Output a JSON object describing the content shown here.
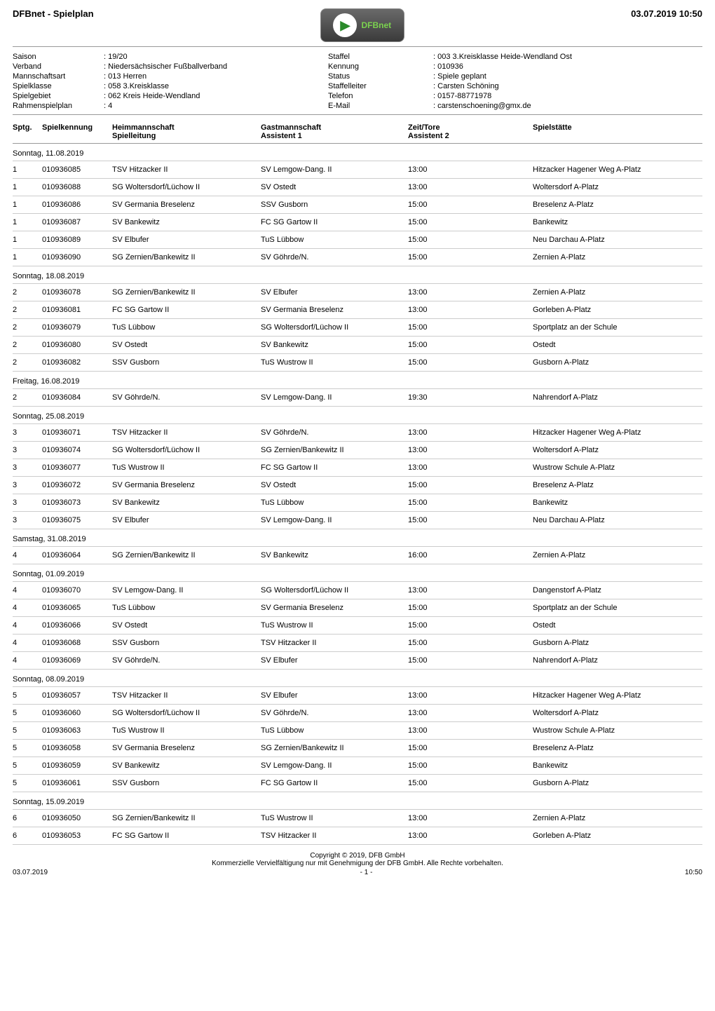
{
  "header": {
    "title": "DFBnet - Spielplan",
    "date": "03.07.2019 10:50",
    "logo_text": "DFBnet"
  },
  "meta": {
    "left": [
      {
        "label": "Saison",
        "value": "19/20"
      },
      {
        "label": "Verband",
        "value": "Niedersächsischer Fußballverband"
      },
      {
        "label": "Mannschaftsart",
        "value": "013 Herren"
      },
      {
        "label": "Spielklasse",
        "value": "058 3.Kreisklasse"
      },
      {
        "label": "Spielgebiet",
        "value": "062 Kreis Heide-Wendland"
      },
      {
        "label": "Rahmenspielplan",
        "value": "4"
      }
    ],
    "right": [
      {
        "label": "Staffel",
        "value": "003 3.Kreisklasse Heide-Wendland Ost"
      },
      {
        "label": "Kennung",
        "value": "010936"
      },
      {
        "label": "Status",
        "value": "Spiele geplant"
      },
      {
        "label": "Staffelleiter",
        "value": "Carsten Schöning"
      },
      {
        "label": "Telefon",
        "value": "0157-88771978"
      },
      {
        "label": "E-Mail",
        "value": "carstenschoening@gmx.de"
      }
    ]
  },
  "columns": {
    "sptg": "Sptg.",
    "kennung": "Spielkennung",
    "heim": "Heimmannschaft",
    "heim_sub": "Spielleitung",
    "gast": "Gastmannschaft",
    "gast_sub": "Assistent 1",
    "zeit": "Zeit/Tore",
    "zeit_sub": "Assistent 2",
    "stadion": "Spielstätte"
  },
  "groups": [
    {
      "date": "Sonntag, 11.08.2019",
      "rows": [
        {
          "sptg": "1",
          "kennung": "010936085",
          "heim": "TSV Hitzacker II",
          "gast": "SV Lemgow-Dang. II",
          "zeit": "13:00",
          "stadion": "Hitzacker Hagener Weg A-Platz"
        },
        {
          "sptg": "1",
          "kennung": "010936088",
          "heim": "SG Woltersdorf/Lüchow II",
          "gast": "SV Ostedt",
          "zeit": "13:00",
          "stadion": "Woltersdorf A-Platz"
        },
        {
          "sptg": "1",
          "kennung": "010936086",
          "heim": "SV Germania Breselenz",
          "gast": "SSV Gusborn",
          "zeit": "15:00",
          "stadion": "Breselenz A-Platz"
        },
        {
          "sptg": "1",
          "kennung": "010936087",
          "heim": "SV Bankewitz",
          "gast": "FC SG Gartow II",
          "zeit": "15:00",
          "stadion": "Bankewitz"
        },
        {
          "sptg": "1",
          "kennung": "010936089",
          "heim": "SV Elbufer",
          "gast": "TuS Lübbow",
          "zeit": "15:00",
          "stadion": "Neu Darchau A-Platz"
        },
        {
          "sptg": "1",
          "kennung": "010936090",
          "heim": "SG Zernien/Bankewitz II",
          "gast": "SV Göhrde/N.",
          "zeit": "15:00",
          "stadion": "Zernien A-Platz"
        }
      ]
    },
    {
      "date": "Sonntag, 18.08.2019",
      "rows": [
        {
          "sptg": "2",
          "kennung": "010936078",
          "heim": "SG Zernien/Bankewitz II",
          "gast": "SV Elbufer",
          "zeit": "13:00",
          "stadion": "Zernien A-Platz"
        },
        {
          "sptg": "2",
          "kennung": "010936081",
          "heim": "FC SG Gartow II",
          "gast": "SV Germania Breselenz",
          "zeit": "13:00",
          "stadion": "Gorleben A-Platz"
        },
        {
          "sptg": "2",
          "kennung": "010936079",
          "heim": "TuS Lübbow",
          "gast": "SG Woltersdorf/Lüchow II",
          "zeit": "15:00",
          "stadion": "Sportplatz an der Schule"
        },
        {
          "sptg": "2",
          "kennung": "010936080",
          "heim": "SV Ostedt",
          "gast": "SV Bankewitz",
          "zeit": "15:00",
          "stadion": "Ostedt"
        },
        {
          "sptg": "2",
          "kennung": "010936082",
          "heim": "SSV Gusborn",
          "gast": "TuS Wustrow II",
          "zeit": "15:00",
          "stadion": "Gusborn A-Platz"
        }
      ]
    },
    {
      "date": "Freitag, 16.08.2019",
      "rows": [
        {
          "sptg": "2",
          "kennung": "010936084",
          "heim": "SV Göhrde/N.",
          "gast": "SV Lemgow-Dang. II",
          "zeit": "19:30",
          "stadion": "Nahrendorf A-Platz"
        }
      ]
    },
    {
      "date": "Sonntag, 25.08.2019",
      "rows": [
        {
          "sptg": "3",
          "kennung": "010936071",
          "heim": "TSV Hitzacker II",
          "gast": "SV Göhrde/N.",
          "zeit": "13:00",
          "stadion": "Hitzacker Hagener Weg A-Platz"
        },
        {
          "sptg": "3",
          "kennung": "010936074",
          "heim": "SG Woltersdorf/Lüchow II",
          "gast": "SG Zernien/Bankewitz II",
          "zeit": "13:00",
          "stadion": "Woltersdorf A-Platz"
        },
        {
          "sptg": "3",
          "kennung": "010936077",
          "heim": "TuS Wustrow II",
          "gast": "FC SG Gartow II",
          "zeit": "13:00",
          "stadion": "Wustrow Schule A-Platz"
        },
        {
          "sptg": "3",
          "kennung": "010936072",
          "heim": "SV Germania Breselenz",
          "gast": "SV Ostedt",
          "zeit": "15:00",
          "stadion": "Breselenz A-Platz"
        },
        {
          "sptg": "3",
          "kennung": "010936073",
          "heim": "SV Bankewitz",
          "gast": "TuS Lübbow",
          "zeit": "15:00",
          "stadion": "Bankewitz"
        },
        {
          "sptg": "3",
          "kennung": "010936075",
          "heim": "SV Elbufer",
          "gast": "SV Lemgow-Dang. II",
          "zeit": "15:00",
          "stadion": "Neu Darchau A-Platz"
        }
      ]
    },
    {
      "date": "Samstag, 31.08.2019",
      "rows": [
        {
          "sptg": "4",
          "kennung": "010936064",
          "heim": "SG Zernien/Bankewitz II",
          "gast": "SV Bankewitz",
          "zeit": "16:00",
          "stadion": "Zernien A-Platz"
        }
      ]
    },
    {
      "date": "Sonntag, 01.09.2019",
      "rows": [
        {
          "sptg": "4",
          "kennung": "010936070",
          "heim": "SV Lemgow-Dang. II",
          "gast": "SG Woltersdorf/Lüchow II",
          "zeit": "13:00",
          "stadion": "Dangenstorf A-Platz"
        },
        {
          "sptg": "4",
          "kennung": "010936065",
          "heim": "TuS Lübbow",
          "gast": "SV Germania Breselenz",
          "zeit": "15:00",
          "stadion": "Sportplatz an der Schule"
        },
        {
          "sptg": "4",
          "kennung": "010936066",
          "heim": "SV Ostedt",
          "gast": "TuS Wustrow II",
          "zeit": "15:00",
          "stadion": "Ostedt"
        },
        {
          "sptg": "4",
          "kennung": "010936068",
          "heim": "SSV Gusborn",
          "gast": "TSV Hitzacker II",
          "zeit": "15:00",
          "stadion": "Gusborn A-Platz"
        },
        {
          "sptg": "4",
          "kennung": "010936069",
          "heim": "SV Göhrde/N.",
          "gast": "SV Elbufer",
          "zeit": "15:00",
          "stadion": "Nahrendorf A-Platz"
        }
      ]
    },
    {
      "date": "Sonntag, 08.09.2019",
      "rows": [
        {
          "sptg": "5",
          "kennung": "010936057",
          "heim": "TSV Hitzacker II",
          "gast": "SV Elbufer",
          "zeit": "13:00",
          "stadion": "Hitzacker Hagener Weg A-Platz"
        },
        {
          "sptg": "5",
          "kennung": "010936060",
          "heim": "SG Woltersdorf/Lüchow II",
          "gast": "SV Göhrde/N.",
          "zeit": "13:00",
          "stadion": "Woltersdorf A-Platz"
        },
        {
          "sptg": "5",
          "kennung": "010936063",
          "heim": "TuS Wustrow II",
          "gast": "TuS Lübbow",
          "zeit": "13:00",
          "stadion": "Wustrow Schule A-Platz"
        },
        {
          "sptg": "5",
          "kennung": "010936058",
          "heim": "SV Germania Breselenz",
          "gast": "SG Zernien/Bankewitz II",
          "zeit": "15:00",
          "stadion": "Breselenz A-Platz"
        },
        {
          "sptg": "5",
          "kennung": "010936059",
          "heim": "SV Bankewitz",
          "gast": "SV Lemgow-Dang. II",
          "zeit": "15:00",
          "stadion": "Bankewitz"
        },
        {
          "sptg": "5",
          "kennung": "010936061",
          "heim": "SSV Gusborn",
          "gast": "FC SG Gartow II",
          "zeit": "15:00",
          "stadion": "Gusborn A-Platz"
        }
      ]
    },
    {
      "date": "Sonntag, 15.09.2019",
      "rows": [
        {
          "sptg": "6",
          "kennung": "010936050",
          "heim": "SG Zernien/Bankewitz II",
          "gast": "TuS Wustrow II",
          "zeit": "13:00",
          "stadion": "Zernien A-Platz"
        },
        {
          "sptg": "6",
          "kennung": "010936053",
          "heim": "FC SG Gartow II",
          "gast": "TSV Hitzacker II",
          "zeit": "13:00",
          "stadion": "Gorleben A-Platz"
        }
      ]
    }
  ],
  "footer": {
    "copyright": "Copyright © 2019, DFB GmbH",
    "legal": "Kommerzielle Vervielfältigung nur mit Genehmigung der DFB GmbH. Alle Rechte vorbehalten.",
    "left": "03.07.2019",
    "center": "- 1 -",
    "right": "10:50"
  }
}
